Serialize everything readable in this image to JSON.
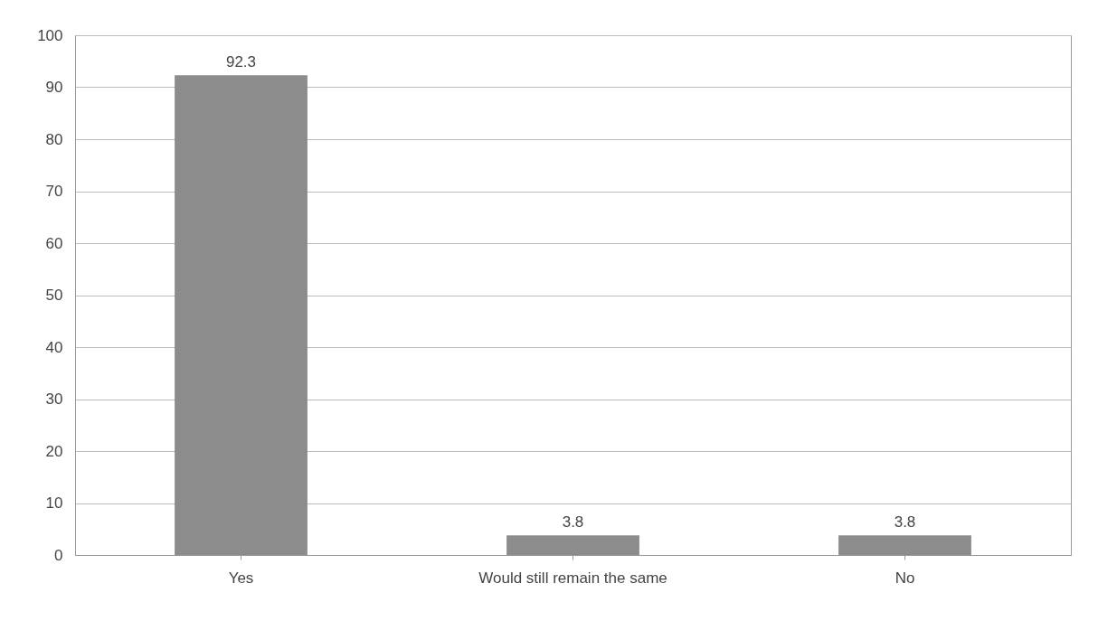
{
  "chart_data": {
    "type": "bar",
    "categories": [
      "Yes",
      "Would still remain the same",
      "No"
    ],
    "values": [
      92.3,
      3.8,
      3.8
    ],
    "color": "#8c8c8c",
    "ylim": [
      0,
      100
    ],
    "yticks": [
      0,
      10,
      20,
      30,
      40,
      50,
      60,
      70,
      80,
      90,
      100
    ],
    "grid": "y",
    "data_labels": true
  }
}
